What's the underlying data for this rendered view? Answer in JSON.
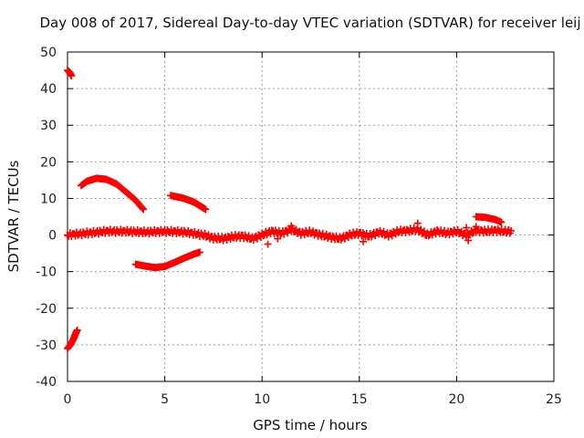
{
  "chart_data": {
    "type": "scatter",
    "title": "Day 008 of 2017, Sidereal Day-to-day VTEC variation (SDTVAR) for receiver leij",
    "xlabel": "GPS time / hours",
    "ylabel": "SDTVAR / TECUs",
    "xlim": [
      0,
      25
    ],
    "ylim": [
      -40,
      50
    ],
    "xticks": [
      "0",
      "5",
      "10",
      "15",
      "20",
      "25"
    ],
    "yticks": [
      "-40",
      "-30",
      "-20",
      "-10",
      "0",
      "10",
      "20",
      "30",
      "40",
      "50"
    ],
    "grid": true,
    "marker": "+",
    "series_color": "#ff0000",
    "series": [
      {
        "values": [
          [
            0.0,
            45
          ],
          [
            0.1,
            44.5
          ],
          [
            0.2,
            43.5
          ]
        ]
      },
      {
        "values": [
          [
            0.0,
            -31
          ],
          [
            0.15,
            -30
          ],
          [
            0.3,
            -28.5
          ],
          [
            0.45,
            -26.5
          ],
          [
            0.5,
            -26
          ]
        ]
      },
      {
        "values": [
          [
            0.7,
            13.5
          ],
          [
            1.0,
            14.7
          ],
          [
            1.5,
            15.5
          ],
          [
            2.0,
            15.2
          ],
          [
            2.5,
            14
          ],
          [
            3.0,
            11.8
          ],
          [
            3.5,
            9.5
          ],
          [
            3.9,
            7
          ]
        ]
      },
      {
        "values": [
          [
            5.3,
            10.8
          ],
          [
            6.0,
            10
          ],
          [
            6.5,
            9
          ],
          [
            7.1,
            7
          ]
        ]
      },
      {
        "values": [
          [
            3.5,
            -8
          ],
          [
            4.0,
            -8.5
          ],
          [
            4.5,
            -8.9
          ],
          [
            5.0,
            -8.6
          ],
          [
            5.5,
            -7.5
          ],
          [
            6.0,
            -6.3
          ],
          [
            6.5,
            -5.2
          ],
          [
            6.8,
            -4.7
          ]
        ]
      },
      {
        "values": [
          [
            21.0,
            5
          ],
          [
            21.5,
            4.8
          ],
          [
            22.0,
            4.2
          ],
          [
            22.3,
            3.5
          ]
        ]
      },
      {
        "values": [
          [
            0.0,
            0
          ],
          [
            1.0,
            0.5
          ],
          [
            2.0,
            1
          ],
          [
            3.0,
            1
          ],
          [
            4.0,
            0.8
          ],
          [
            5.0,
            1
          ],
          [
            6.0,
            0.8
          ],
          [
            7.0,
            0
          ],
          [
            7.5,
            -0.8
          ],
          [
            8.0,
            -1
          ],
          [
            8.5,
            -0.5
          ],
          [
            9.0,
            -0.3
          ],
          [
            9.5,
            -1
          ],
          [
            10.0,
            0
          ],
          [
            10.5,
            1
          ],
          [
            11.0,
            0.5
          ],
          [
            11.5,
            1.5
          ],
          [
            12.0,
            0.5
          ],
          [
            12.5,
            0.8
          ],
          [
            13.0,
            0
          ],
          [
            13.5,
            -0.5
          ],
          [
            14.0,
            -1
          ],
          [
            14.5,
            0
          ],
          [
            15.0,
            0.5
          ],
          [
            15.5,
            -0.3
          ],
          [
            16.0,
            0.8
          ],
          [
            16.5,
            0
          ],
          [
            17.0,
            1
          ],
          [
            17.5,
            1.2
          ],
          [
            18.0,
            1.5
          ],
          [
            18.5,
            0
          ],
          [
            19.0,
            1
          ],
          [
            19.5,
            0.5
          ],
          [
            20.0,
            1
          ],
          [
            20.5,
            0
          ],
          [
            21.0,
            1.2
          ],
          [
            21.5,
            1
          ],
          [
            22.0,
            1.2
          ],
          [
            22.5,
            1
          ],
          [
            22.8,
            1
          ]
        ]
      },
      {
        "values": [
          [
            10.3,
            -2.5
          ],
          [
            10.8,
            -1
          ],
          [
            15.2,
            -1.8
          ],
          [
            20.6,
            -1.5
          ],
          [
            20.5,
            2
          ],
          [
            21.0,
            2.3
          ],
          [
            18.0,
            3.2
          ],
          [
            11.5,
            2.5
          ]
        ]
      }
    ]
  }
}
